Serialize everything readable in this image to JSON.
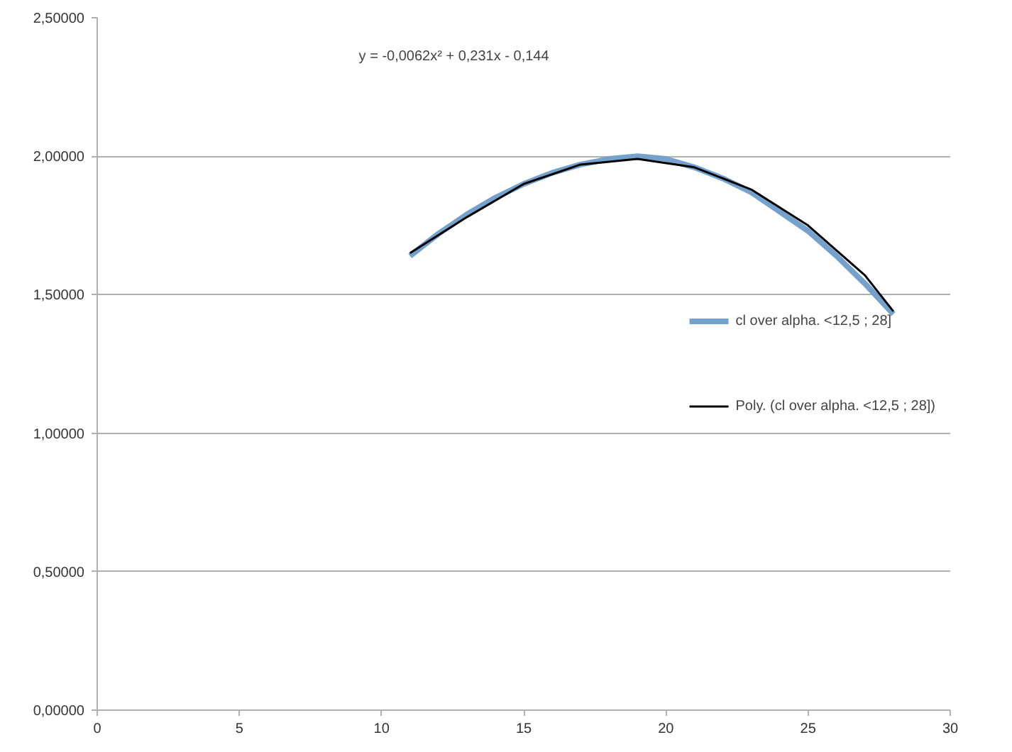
{
  "chart_data": {
    "type": "line",
    "x": [
      11,
      12,
      13,
      14,
      15,
      16,
      17,
      18,
      19,
      20,
      21,
      22,
      23,
      24,
      25,
      26,
      27,
      28
    ],
    "series": [
      {
        "name": "cl over alpha. <12,5 ; 28]",
        "color": "#75a2cc",
        "values": [
          1.64,
          1.72,
          1.79,
          1.85,
          1.9,
          1.94,
          1.97,
          1.99,
          2.0,
          1.99,
          1.96,
          1.92,
          1.87,
          1.8,
          1.73,
          1.64,
          1.54,
          1.43
        ]
      },
      {
        "name": "Poly. (cl over alpha. <12,5 ; 28])",
        "color": "#000000",
        "x": [
          11,
          13,
          15,
          17,
          19,
          21,
          23,
          25,
          27,
          28
        ],
        "values": [
          1.65,
          1.78,
          1.9,
          1.97,
          1.99,
          1.96,
          1.88,
          1.75,
          1.57,
          1.44
        ]
      }
    ],
    "xlim": [
      0,
      30
    ],
    "ylim": [
      0,
      2.5
    ],
    "xticks": [
      0,
      5,
      10,
      15,
      20,
      25,
      30
    ],
    "yticks": [
      {
        "value": 0,
        "label": "0,00000"
      },
      {
        "value": 0.5,
        "label": "0,50000"
      },
      {
        "value": 1,
        "label": "1,00000"
      },
      {
        "value": 1.5,
        "label": "1,50000"
      },
      {
        "value": 2,
        "label": "2,00000"
      },
      {
        "value": 2.5,
        "label": "2,50000"
      }
    ],
    "annotations": [
      "y = -0,0062x² + 0,231x - 0,144"
    ],
    "grid": "y",
    "legend": "right",
    "marker": "none",
    "line_style": "solid"
  }
}
